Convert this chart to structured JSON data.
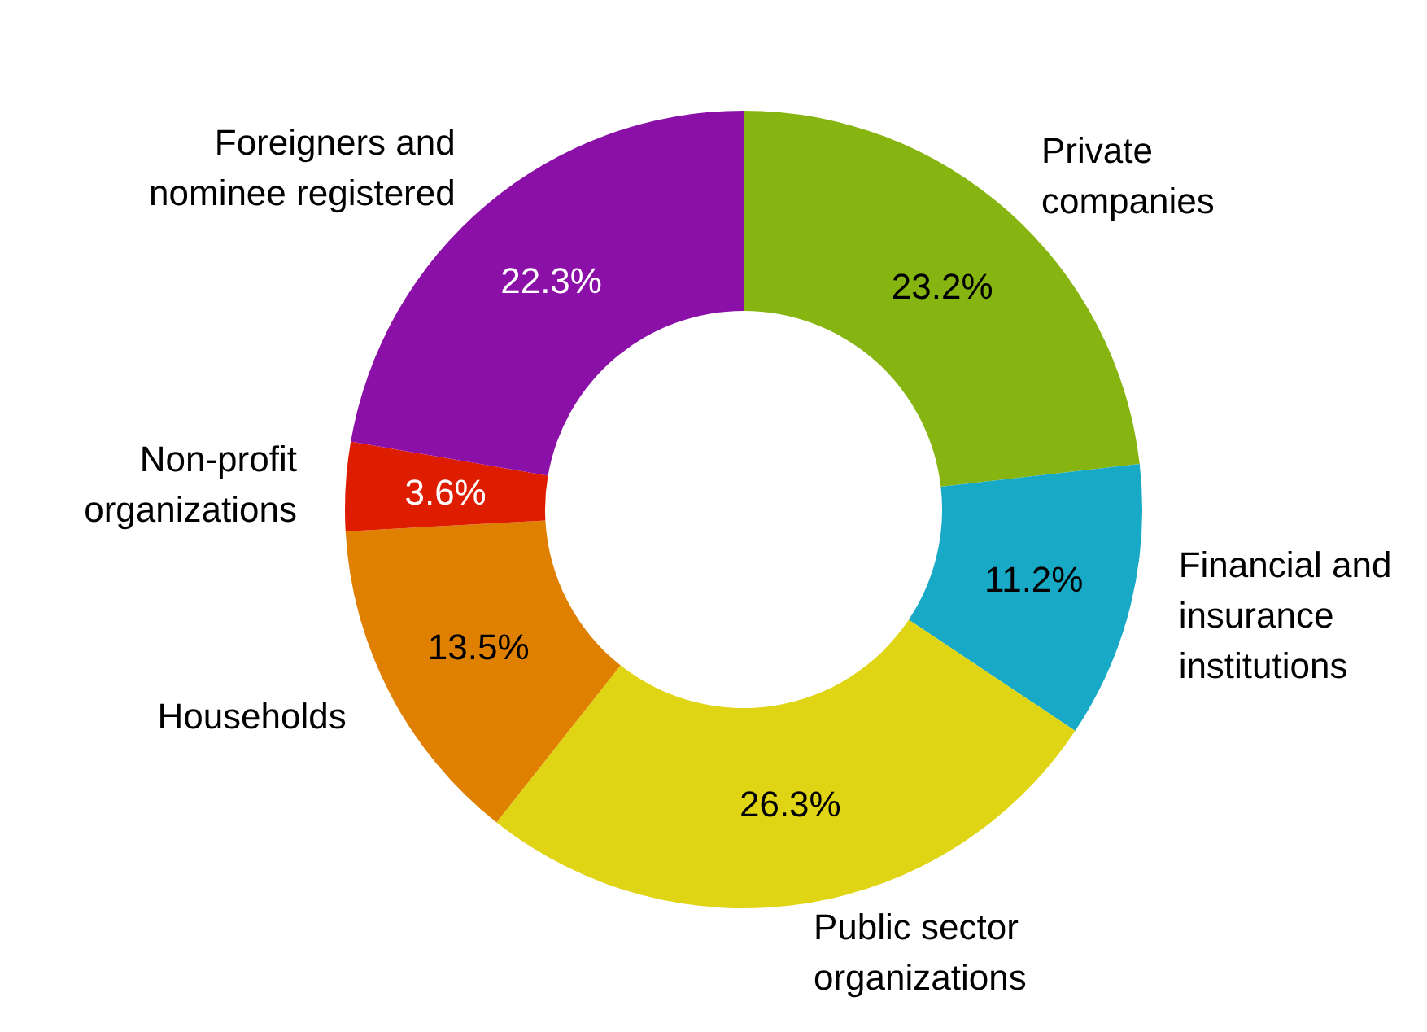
{
  "chart_data": {
    "type": "donut",
    "categories": [
      "Private\ncompanies",
      "Financial and\ninsurance\ninstitutions",
      "Public sector\norganizations",
      "Households",
      "Non-profit\norganizations",
      "Foreigners and\nnominee registered"
    ],
    "values": [
      23.2,
      11.2,
      26.3,
      13.5,
      3.6,
      22.3
    ],
    "colors": [
      "#86b511",
      "#18a9c6",
      "#e0d514",
      "#e08000",
      "#dd1c00",
      "#8b10a8"
    ],
    "value_labels": [
      "23.2%",
      "11.2%",
      "26.3%",
      "13.5%",
      "3.6%",
      "22.3%"
    ],
    "legend": false
  }
}
